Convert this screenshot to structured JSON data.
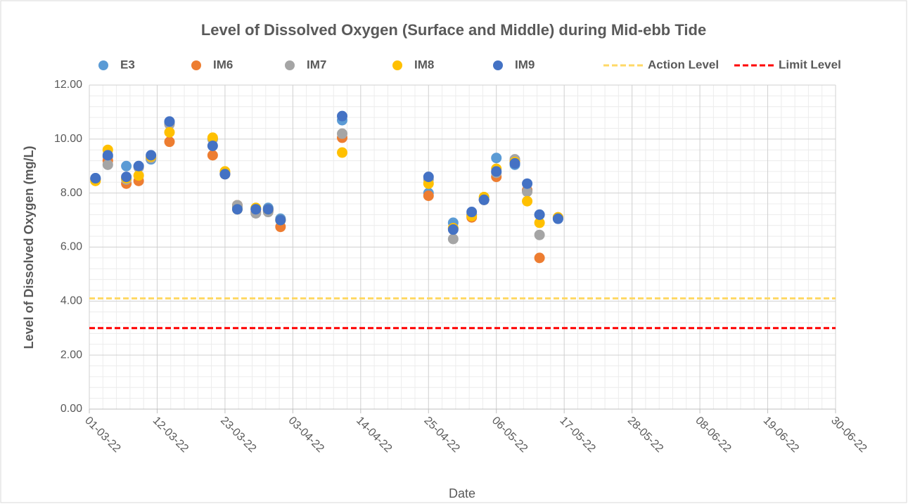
{
  "chart_data": {
    "type": "scatter",
    "title": "Level of Dissolved Oxygen (Surface and Middle) during Mid-ebb Tide",
    "x_label": "Date",
    "y_label": "Level of Dissolved Oxygen (mg/L)",
    "x": [
      "2022-03-02",
      "2022-03-04",
      "2022-03-07",
      "2022-03-09",
      "2022-03-11",
      "2022-03-14",
      "2022-03-21",
      "2022-03-23",
      "2022-03-25",
      "2022-03-28",
      "2022-03-30",
      "2022-04-01",
      "2022-04-11",
      "2022-04-25",
      "2022-04-29",
      "2022-05-02",
      "2022-05-04",
      "2022-05-06",
      "2022-05-09",
      "2022-05-11",
      "2022-05-13",
      "2022-05-16"
    ],
    "series": [
      {
        "name": "E3",
        "color": "#5b9bd5",
        "values": [
          8.55,
          9.35,
          9.0,
          9.0,
          9.25,
          10.6,
          10.0,
          8.7,
          7.5,
          7.4,
          7.45,
          7.05,
          10.7,
          8.0,
          6.9,
          7.2,
          7.75,
          9.3,
          9.05,
          8.1,
          7.2,
          7.05
        ]
      },
      {
        "name": "IM6",
        "color": "#ed7d31",
        "values": [
          8.5,
          9.2,
          8.35,
          8.45,
          9.3,
          9.9,
          9.4,
          8.7,
          7.55,
          7.3,
          7.35,
          6.75,
          10.05,
          7.9,
          6.7,
          7.1,
          7.75,
          8.6,
          9.2,
          8.1,
          5.6,
          7.1
        ]
      },
      {
        "name": "IM7",
        "color": "#a5a5a5",
        "values": [
          8.5,
          9.05,
          8.5,
          8.95,
          9.3,
          10.55,
          10.0,
          8.75,
          7.55,
          7.25,
          7.3,
          7.0,
          10.2,
          8.5,
          6.3,
          7.2,
          7.75,
          8.75,
          9.25,
          8.05,
          6.45,
          7.1
        ]
      },
      {
        "name": "IM8",
        "color": "#ffc000",
        "values": [
          8.45,
          9.6,
          8.55,
          8.65,
          9.35,
          10.25,
          10.05,
          8.8,
          7.4,
          7.45,
          7.4,
          7.0,
          9.5,
          8.35,
          6.7,
          7.15,
          7.85,
          8.9,
          9.15,
          7.7,
          6.9,
          7.1
        ]
      },
      {
        "name": "IM9",
        "color": "#4472c4",
        "values": [
          8.55,
          9.4,
          8.6,
          9.0,
          9.4,
          10.65,
          9.75,
          8.7,
          7.4,
          7.4,
          7.4,
          7.0,
          10.85,
          8.6,
          6.65,
          7.3,
          7.75,
          8.8,
          9.1,
          8.35,
          7.2,
          7.05
        ]
      }
    ],
    "reference_lines": [
      {
        "name": "Action Level",
        "value": 4.1,
        "color": "#ffd966"
      },
      {
        "name": "Limit Level",
        "value": 3.0,
        "color": "#ff0000"
      }
    ],
    "xlim": [
      "2022-03-01",
      "2022-06-30"
    ],
    "xticks": [
      {
        "value": "2022-03-01",
        "label": "01-03-22"
      },
      {
        "value": "2022-03-12",
        "label": "12-03-22"
      },
      {
        "value": "2022-03-23",
        "label": "23-03-22"
      },
      {
        "value": "2022-04-03",
        "label": "03-04-22"
      },
      {
        "value": "2022-04-14",
        "label": "14-04-22"
      },
      {
        "value": "2022-04-25",
        "label": "25-04-22"
      },
      {
        "value": "2022-05-06",
        "label": "06-05-22"
      },
      {
        "value": "2022-05-17",
        "label": "17-05-22"
      },
      {
        "value": "2022-05-28",
        "label": "28-05-22"
      },
      {
        "value": "2022-06-08",
        "label": "08-06-22"
      },
      {
        "value": "2022-06-19",
        "label": "19-06-22"
      },
      {
        "value": "2022-06-30",
        "label": "30-06-22"
      }
    ],
    "ylim": [
      0,
      12
    ],
    "yticks": [
      {
        "value": 0,
        "label": "0.00"
      },
      {
        "value": 2,
        "label": "2.00"
      },
      {
        "value": 4,
        "label": "4.00"
      },
      {
        "value": 6,
        "label": "6.00"
      },
      {
        "value": 8,
        "label": "8.00"
      },
      {
        "value": 10,
        "label": "10.00"
      },
      {
        "value": 12,
        "label": "12.00"
      }
    ],
    "grid": true,
    "minor_grid": true,
    "legend": "top"
  }
}
